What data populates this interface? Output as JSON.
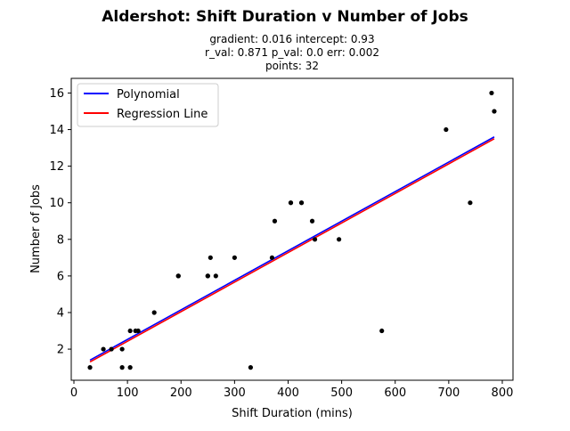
{
  "chart_data": {
    "type": "scatter",
    "title": "Aldershot: Shift Duration v Number of Jobs",
    "subtitle_lines": [
      "gradient: 0.016  intercept: 0.93",
      "r_val: 0.871  p_val: 0.0  err: 0.002",
      "points: 32"
    ],
    "xlabel": "Shift Duration (mins)",
    "ylabel": "Number of Jobs",
    "xlim": [
      -5,
      820
    ],
    "ylim": [
      0.3,
      16.8
    ],
    "x_ticks": [
      0,
      100,
      200,
      300,
      400,
      500,
      600,
      700,
      800
    ],
    "y_ticks": [
      2,
      4,
      6,
      8,
      10,
      12,
      14,
      16
    ],
    "grid": false,
    "legend_position": "top-left",
    "legend": [
      {
        "label": "Polynomial",
        "color": "#0000ff"
      },
      {
        "label": "Regression Line",
        "color": "#ff0000"
      }
    ],
    "points": [
      {
        "x": 30,
        "y": 1
      },
      {
        "x": 55,
        "y": 2
      },
      {
        "x": 70,
        "y": 2
      },
      {
        "x": 90,
        "y": 1
      },
      {
        "x": 90,
        "y": 2
      },
      {
        "x": 105,
        "y": 1
      },
      {
        "x": 105,
        "y": 3
      },
      {
        "x": 115,
        "y": 3
      },
      {
        "x": 120,
        "y": 3
      },
      {
        "x": 150,
        "y": 4
      },
      {
        "x": 195,
        "y": 6
      },
      {
        "x": 250,
        "y": 6
      },
      {
        "x": 255,
        "y": 7
      },
      {
        "x": 265,
        "y": 6
      },
      {
        "x": 300,
        "y": 7
      },
      {
        "x": 330,
        "y": 1
      },
      {
        "x": 370,
        "y": 7
      },
      {
        "x": 375,
        "y": 9
      },
      {
        "x": 405,
        "y": 10
      },
      {
        "x": 425,
        "y": 10
      },
      {
        "x": 445,
        "y": 9
      },
      {
        "x": 450,
        "y": 8
      },
      {
        "x": 495,
        "y": 8
      },
      {
        "x": 575,
        "y": 3
      },
      {
        "x": 695,
        "y": 14
      },
      {
        "x": 740,
        "y": 10
      },
      {
        "x": 780,
        "y": 16
      },
      {
        "x": 785,
        "y": 15
      },
      {
        "x": 195,
        "y": 6
      },
      {
        "x": 250,
        "y": 6
      },
      {
        "x": 405,
        "y": 10
      },
      {
        "x": 425,
        "y": 10
      }
    ],
    "polynomial_line": {
      "x": [
        30,
        785
      ],
      "y": [
        1.4,
        13.6
      ],
      "color": "#0000ff"
    },
    "regression_line": {
      "x": [
        30,
        785
      ],
      "y": [
        1.3,
        13.5
      ],
      "color": "#ff0000"
    },
    "point_color": "#000000"
  }
}
